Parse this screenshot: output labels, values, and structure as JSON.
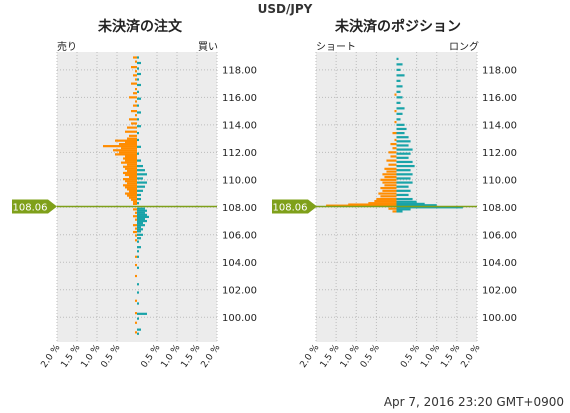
{
  "header": {
    "title": "USD/JPY"
  },
  "footer": {
    "timestamp": "Apr 7, 2016 23:20 GMT+0900"
  },
  "colors": {
    "sell": "#ff8c00",
    "buy": "#19a3a8",
    "price": "#7fa01a",
    "grid": "#bbbbbb",
    "plot_bg": "#ececec"
  },
  "chart_data": [
    {
      "type": "bar",
      "orientation": "horizontal",
      "title": "未決済の注文",
      "left_label": "売り",
      "right_label": "買い",
      "current_price": "108.06",
      "price_value": 108.06,
      "ylim": [
        98.2,
        119.3
      ],
      "yticks": [
        "100.00",
        "102.00",
        "104.00",
        "106.00",
        "108.00",
        "110.00",
        "112.00",
        "114.00",
        "116.00",
        "118.00"
      ],
      "xticks": [
        "2.0 %",
        "1.5 %",
        "1.0 %",
        "0.5 %",
        "0.5 %",
        "1.0 %",
        "1.5 %",
        "2.0 %"
      ],
      "xlim": [
        -2.0,
        2.0
      ],
      "sell": [
        {
          "price": 118.9,
          "pct": 0.1
        },
        {
          "price": 118.6,
          "pct": 0.05
        },
        {
          "price": 118.2,
          "pct": 0.15
        },
        {
          "price": 117.9,
          "pct": 0.05
        },
        {
          "price": 117.6,
          "pct": 0.1
        },
        {
          "price": 117.3,
          "pct": 0.05
        },
        {
          "price": 117.0,
          "pct": 0.15
        },
        {
          "price": 116.6,
          "pct": 0.05
        },
        {
          "price": 116.3,
          "pct": 0.1
        },
        {
          "price": 116.0,
          "pct": 0.2
        },
        {
          "price": 115.7,
          "pct": 0.05
        },
        {
          "price": 115.4,
          "pct": 0.1
        },
        {
          "price": 115.0,
          "pct": 0.15
        },
        {
          "price": 114.7,
          "pct": 0.05
        },
        {
          "price": 114.4,
          "pct": 0.2
        },
        {
          "price": 114.1,
          "pct": 0.15
        },
        {
          "price": 113.8,
          "pct": 0.25
        },
        {
          "price": 113.5,
          "pct": 0.3
        },
        {
          "price": 113.2,
          "pct": 0.2
        },
        {
          "price": 113.0,
          "pct": 0.25
        },
        {
          "price": 112.85,
          "pct": 0.55
        },
        {
          "price": 112.75,
          "pct": 0.3
        },
        {
          "price": 112.6,
          "pct": 0.45
        },
        {
          "price": 112.45,
          "pct": 0.85
        },
        {
          "price": 112.3,
          "pct": 0.4
        },
        {
          "price": 112.15,
          "pct": 0.6
        },
        {
          "price": 112.0,
          "pct": 0.45
        },
        {
          "price": 111.85,
          "pct": 0.55
        },
        {
          "price": 111.7,
          "pct": 0.3
        },
        {
          "price": 111.55,
          "pct": 0.35
        },
        {
          "price": 111.4,
          "pct": 0.3
        },
        {
          "price": 111.25,
          "pct": 0.4
        },
        {
          "price": 111.1,
          "pct": 0.25
        },
        {
          "price": 110.95,
          "pct": 0.35
        },
        {
          "price": 110.8,
          "pct": 0.3
        },
        {
          "price": 110.65,
          "pct": 0.25
        },
        {
          "price": 110.5,
          "pct": 0.35
        },
        {
          "price": 110.35,
          "pct": 0.3
        },
        {
          "price": 110.2,
          "pct": 0.2
        },
        {
          "price": 110.05,
          "pct": 0.35
        },
        {
          "price": 109.9,
          "pct": 0.3
        },
        {
          "price": 109.75,
          "pct": 0.25
        },
        {
          "price": 109.6,
          "pct": 0.35
        },
        {
          "price": 109.45,
          "pct": 0.3
        },
        {
          "price": 109.3,
          "pct": 0.25
        },
        {
          "price": 109.15,
          "pct": 0.2
        },
        {
          "price": 109.0,
          "pct": 0.3
        },
        {
          "price": 108.85,
          "pct": 0.25
        },
        {
          "price": 108.7,
          "pct": 0.2
        },
        {
          "price": 108.55,
          "pct": 0.15
        },
        {
          "price": 108.4,
          "pct": 0.1
        },
        {
          "price": 108.25,
          "pct": 0.1
        },
        {
          "price": 107.85,
          "pct": 0.1
        },
        {
          "price": 107.6,
          "pct": 0.05
        },
        {
          "price": 107.35,
          "pct": 0.1
        },
        {
          "price": 107.1,
          "pct": 0.05
        },
        {
          "price": 106.7,
          "pct": 0.1
        },
        {
          "price": 106.45,
          "pct": 0.05
        },
        {
          "price": 106.2,
          "pct": 0.1
        },
        {
          "price": 105.95,
          "pct": 0.05
        },
        {
          "price": 105.6,
          "pct": 0.05
        },
        {
          "price": 104.4,
          "pct": 0.05
        },
        {
          "price": 103.8,
          "pct": 0.05
        },
        {
          "price": 103.0,
          "pct": 0.05
        },
        {
          "price": 101.2,
          "pct": 0.05
        },
        {
          "price": 100.3,
          "pct": 0.05
        },
        {
          "price": 99.6,
          "pct": 0.05
        },
        {
          "price": 98.9,
          "pct": 0.05
        }
      ],
      "buy": [
        {
          "price": 118.9,
          "pct": 0.05
        },
        {
          "price": 118.5,
          "pct": 0.1
        },
        {
          "price": 118.1,
          "pct": 0.05
        },
        {
          "price": 117.7,
          "pct": 0.1
        },
        {
          "price": 117.3,
          "pct": 0.05
        },
        {
          "price": 116.9,
          "pct": 0.1
        },
        {
          "price": 116.4,
          "pct": 0.05
        },
        {
          "price": 115.9,
          "pct": 0.1
        },
        {
          "price": 115.4,
          "pct": 0.05
        },
        {
          "price": 114.9,
          "pct": 0.1
        },
        {
          "price": 114.4,
          "pct": 0.05
        },
        {
          "price": 113.9,
          "pct": 0.1
        },
        {
          "price": 113.4,
          "pct": 0.05
        },
        {
          "price": 112.9,
          "pct": 0.05
        },
        {
          "price": 112.4,
          "pct": 0.1
        },
        {
          "price": 111.9,
          "pct": 0.05
        },
        {
          "price": 111.4,
          "pct": 0.1
        },
        {
          "price": 111.0,
          "pct": 0.15
        },
        {
          "price": 110.7,
          "pct": 0.2
        },
        {
          "price": 110.4,
          "pct": 0.25
        },
        {
          "price": 110.1,
          "pct": 0.15
        },
        {
          "price": 109.8,
          "pct": 0.25
        },
        {
          "price": 109.5,
          "pct": 0.2
        },
        {
          "price": 109.2,
          "pct": 0.15
        },
        {
          "price": 108.9,
          "pct": 0.1
        },
        {
          "price": 108.6,
          "pct": 0.1
        },
        {
          "price": 108.3,
          "pct": 0.05
        },
        {
          "price": 107.9,
          "pct": 0.2
        },
        {
          "price": 107.75,
          "pct": 0.25
        },
        {
          "price": 107.6,
          "pct": 0.2
        },
        {
          "price": 107.45,
          "pct": 0.25
        },
        {
          "price": 107.3,
          "pct": 0.3
        },
        {
          "price": 107.15,
          "pct": 0.2
        },
        {
          "price": 107.0,
          "pct": 0.25
        },
        {
          "price": 106.85,
          "pct": 0.15
        },
        {
          "price": 106.7,
          "pct": 0.2
        },
        {
          "price": 106.55,
          "pct": 0.1
        },
        {
          "price": 106.4,
          "pct": 0.15
        },
        {
          "price": 106.25,
          "pct": 0.1
        },
        {
          "price": 106.0,
          "pct": 0.15
        },
        {
          "price": 105.75,
          "pct": 0.1
        },
        {
          "price": 105.5,
          "pct": 0.05
        },
        {
          "price": 105.1,
          "pct": 0.1
        },
        {
          "price": 104.8,
          "pct": 0.05
        },
        {
          "price": 104.4,
          "pct": 0.05
        },
        {
          "price": 103.6,
          "pct": 0.05
        },
        {
          "price": 102.4,
          "pct": 0.05
        },
        {
          "price": 101.8,
          "pct": 0.05
        },
        {
          "price": 101.0,
          "pct": 0.05
        },
        {
          "price": 100.25,
          "pct": 0.25
        },
        {
          "price": 99.9,
          "pct": 0.05
        },
        {
          "price": 99.1,
          "pct": 0.1
        },
        {
          "price": 98.8,
          "pct": 0.05
        }
      ]
    },
    {
      "type": "bar",
      "orientation": "horizontal",
      "title": "未決済のポジション",
      "left_label": "ショート",
      "right_label": "ロング",
      "current_price": "108.06",
      "price_value": 108.06,
      "ylim": [
        98.2,
        119.3
      ],
      "yticks": [
        "100.00",
        "102.00",
        "104.00",
        "106.00",
        "108.00",
        "110.00",
        "112.00",
        "114.00",
        "116.00",
        "118.00"
      ],
      "xticks": [
        "2.0 %",
        "1.5 %",
        "1.0 %",
        "0.5 %",
        "0.5 %",
        "1.0 %",
        "1.5 %",
        "2.0 %"
      ],
      "xlim": [
        -2.0,
        2.0
      ],
      "short": [
        {
          "price": 116.2,
          "pct": 0.05
        },
        {
          "price": 115.0,
          "pct": 0.05
        },
        {
          "price": 114.2,
          "pct": 0.05
        },
        {
          "price": 113.4,
          "pct": 0.1
        },
        {
          "price": 112.9,
          "pct": 0.05
        },
        {
          "price": 112.6,
          "pct": 0.15
        },
        {
          "price": 112.3,
          "pct": 0.1
        },
        {
          "price": 112.0,
          "pct": 0.2
        },
        {
          "price": 111.7,
          "pct": 0.15
        },
        {
          "price": 111.4,
          "pct": 0.25
        },
        {
          "price": 111.1,
          "pct": 0.2
        },
        {
          "price": 110.8,
          "pct": 0.3
        },
        {
          "price": 110.6,
          "pct": 0.25
        },
        {
          "price": 110.4,
          "pct": 0.35
        },
        {
          "price": 110.2,
          "pct": 0.3
        },
        {
          "price": 110.0,
          "pct": 0.4
        },
        {
          "price": 109.8,
          "pct": 0.35
        },
        {
          "price": 109.6,
          "pct": 0.3
        },
        {
          "price": 109.4,
          "pct": 0.4
        },
        {
          "price": 109.2,
          "pct": 0.35
        },
        {
          "price": 109.0,
          "pct": 0.45
        },
        {
          "price": 108.8,
          "pct": 0.4
        },
        {
          "price": 108.6,
          "pct": 0.5
        },
        {
          "price": 108.45,
          "pct": 0.55
        },
        {
          "price": 108.3,
          "pct": 0.7
        },
        {
          "price": 108.2,
          "pct": 1.2
        },
        {
          "price": 108.12,
          "pct": 1.75
        },
        {
          "price": 107.9,
          "pct": 0.2
        },
        {
          "price": 107.7,
          "pct": 0.1
        }
      ],
      "long": [
        {
          "price": 118.8,
          "pct": 0.05
        },
        {
          "price": 118.4,
          "pct": 0.15
        },
        {
          "price": 118.0,
          "pct": 0.1
        },
        {
          "price": 117.6,
          "pct": 0.2
        },
        {
          "price": 117.2,
          "pct": 0.1
        },
        {
          "price": 116.8,
          "pct": 0.15
        },
        {
          "price": 116.4,
          "pct": 0.1
        },
        {
          "price": 116.0,
          "pct": 0.15
        },
        {
          "price": 115.6,
          "pct": 0.1
        },
        {
          "price": 115.2,
          "pct": 0.2
        },
        {
          "price": 114.8,
          "pct": 0.15
        },
        {
          "price": 114.4,
          "pct": 0.1
        },
        {
          "price": 114.0,
          "pct": 0.2
        },
        {
          "price": 113.7,
          "pct": 0.25
        },
        {
          "price": 113.4,
          "pct": 0.2
        },
        {
          "price": 113.1,
          "pct": 0.3
        },
        {
          "price": 112.8,
          "pct": 0.35
        },
        {
          "price": 112.5,
          "pct": 0.3
        },
        {
          "price": 112.2,
          "pct": 0.4
        },
        {
          "price": 111.9,
          "pct": 0.35
        },
        {
          "price": 111.6,
          "pct": 0.3
        },
        {
          "price": 111.3,
          "pct": 0.4
        },
        {
          "price": 111.0,
          "pct": 0.45
        },
        {
          "price": 110.7,
          "pct": 0.35
        },
        {
          "price": 110.4,
          "pct": 0.4
        },
        {
          "price": 110.1,
          "pct": 0.35
        },
        {
          "price": 109.8,
          "pct": 0.4
        },
        {
          "price": 109.5,
          "pct": 0.3
        },
        {
          "price": 109.2,
          "pct": 0.35
        },
        {
          "price": 108.9,
          "pct": 0.3
        },
        {
          "price": 108.6,
          "pct": 0.4
        },
        {
          "price": 108.4,
          "pct": 0.5
        },
        {
          "price": 108.25,
          "pct": 0.7
        },
        {
          "price": 108.15,
          "pct": 1.0
        },
        {
          "price": 108.0,
          "pct": 1.65
        },
        {
          "price": 107.85,
          "pct": 0.35
        },
        {
          "price": 107.7,
          "pct": 0.15
        }
      ]
    }
  ]
}
